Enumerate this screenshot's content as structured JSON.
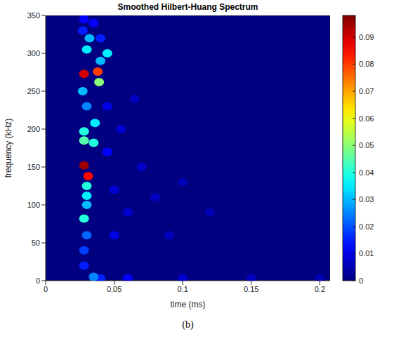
{
  "chart_data": {
    "type": "heatmap",
    "title": "Smoothed Hilbert-Huang Spectrum",
    "x_label": "time (ms)",
    "y_label": "frequency (kHz)",
    "caption": "(b)",
    "xlim": [
      0,
      0.2075
    ],
    "xticks": [
      0,
      0.05,
      0.1,
      0.15,
      0.2
    ],
    "ylim": [
      0,
      350
    ],
    "yticks": [
      0,
      50,
      100,
      150,
      200,
      250,
      300,
      350
    ],
    "colorbar_range": [
      0,
      0.098
    ],
    "colorbar_ticks": [
      0,
      0.01,
      0.02,
      0.03,
      0.04,
      0.05,
      0.06,
      0.07,
      0.08,
      0.09
    ],
    "cells": [
      [
        0.2,
        3,
        0.005
      ],
      [
        0.1,
        130,
        0.005
      ],
      [
        0.12,
        90,
        0.005
      ],
      [
        0.08,
        110,
        0.006
      ],
      [
        0.09,
        60,
        0.006
      ],
      [
        0.065,
        240,
        0.006
      ],
      [
        0.15,
        3,
        0.006
      ],
      [
        0.07,
        150,
        0.007
      ],
      [
        0.05,
        120,
        0.008
      ],
      [
        0.06,
        90,
        0.008
      ],
      [
        0.055,
        200,
        0.008
      ],
      [
        0.1,
        3,
        0.008
      ],
      [
        0.05,
        60,
        0.01
      ],
      [
        0.045,
        230,
        0.01
      ],
      [
        0.045,
        170,
        0.012
      ],
      [
        0.06,
        3,
        0.012
      ],
      [
        0.028,
        345,
        0.012
      ],
      [
        0.035,
        340,
        0.012
      ],
      [
        0.04,
        3,
        0.015
      ],
      [
        0.028,
        20,
        0.015
      ],
      [
        0.027,
        330,
        0.015
      ],
      [
        0.04,
        320,
        0.015
      ],
      [
        0.028,
        40,
        0.018
      ],
      [
        0.03,
        60,
        0.022
      ],
      [
        0.03,
        230,
        0.025
      ],
      [
        0.035,
        5,
        0.025
      ],
      [
        0.027,
        250,
        0.03
      ],
      [
        0.04,
        290,
        0.03
      ],
      [
        0.03,
        100,
        0.03
      ],
      [
        0.032,
        320,
        0.03
      ],
      [
        0.045,
        300,
        0.035
      ],
      [
        0.03,
        305,
        0.035
      ],
      [
        0.03,
        112,
        0.035
      ],
      [
        0.036,
        208,
        0.035
      ],
      [
        0.028,
        197,
        0.04
      ],
      [
        0.035,
        182,
        0.04
      ],
      [
        0.03,
        125,
        0.04
      ],
      [
        0.028,
        82,
        0.04
      ],
      [
        0.028,
        185,
        0.045
      ],
      [
        0.039,
        262,
        0.05
      ],
      [
        0.038,
        276,
        0.08
      ],
      [
        0.031,
        138,
        0.085
      ],
      [
        0.028,
        273,
        0.09
      ],
      [
        0.028,
        152,
        0.095
      ]
    ]
  }
}
